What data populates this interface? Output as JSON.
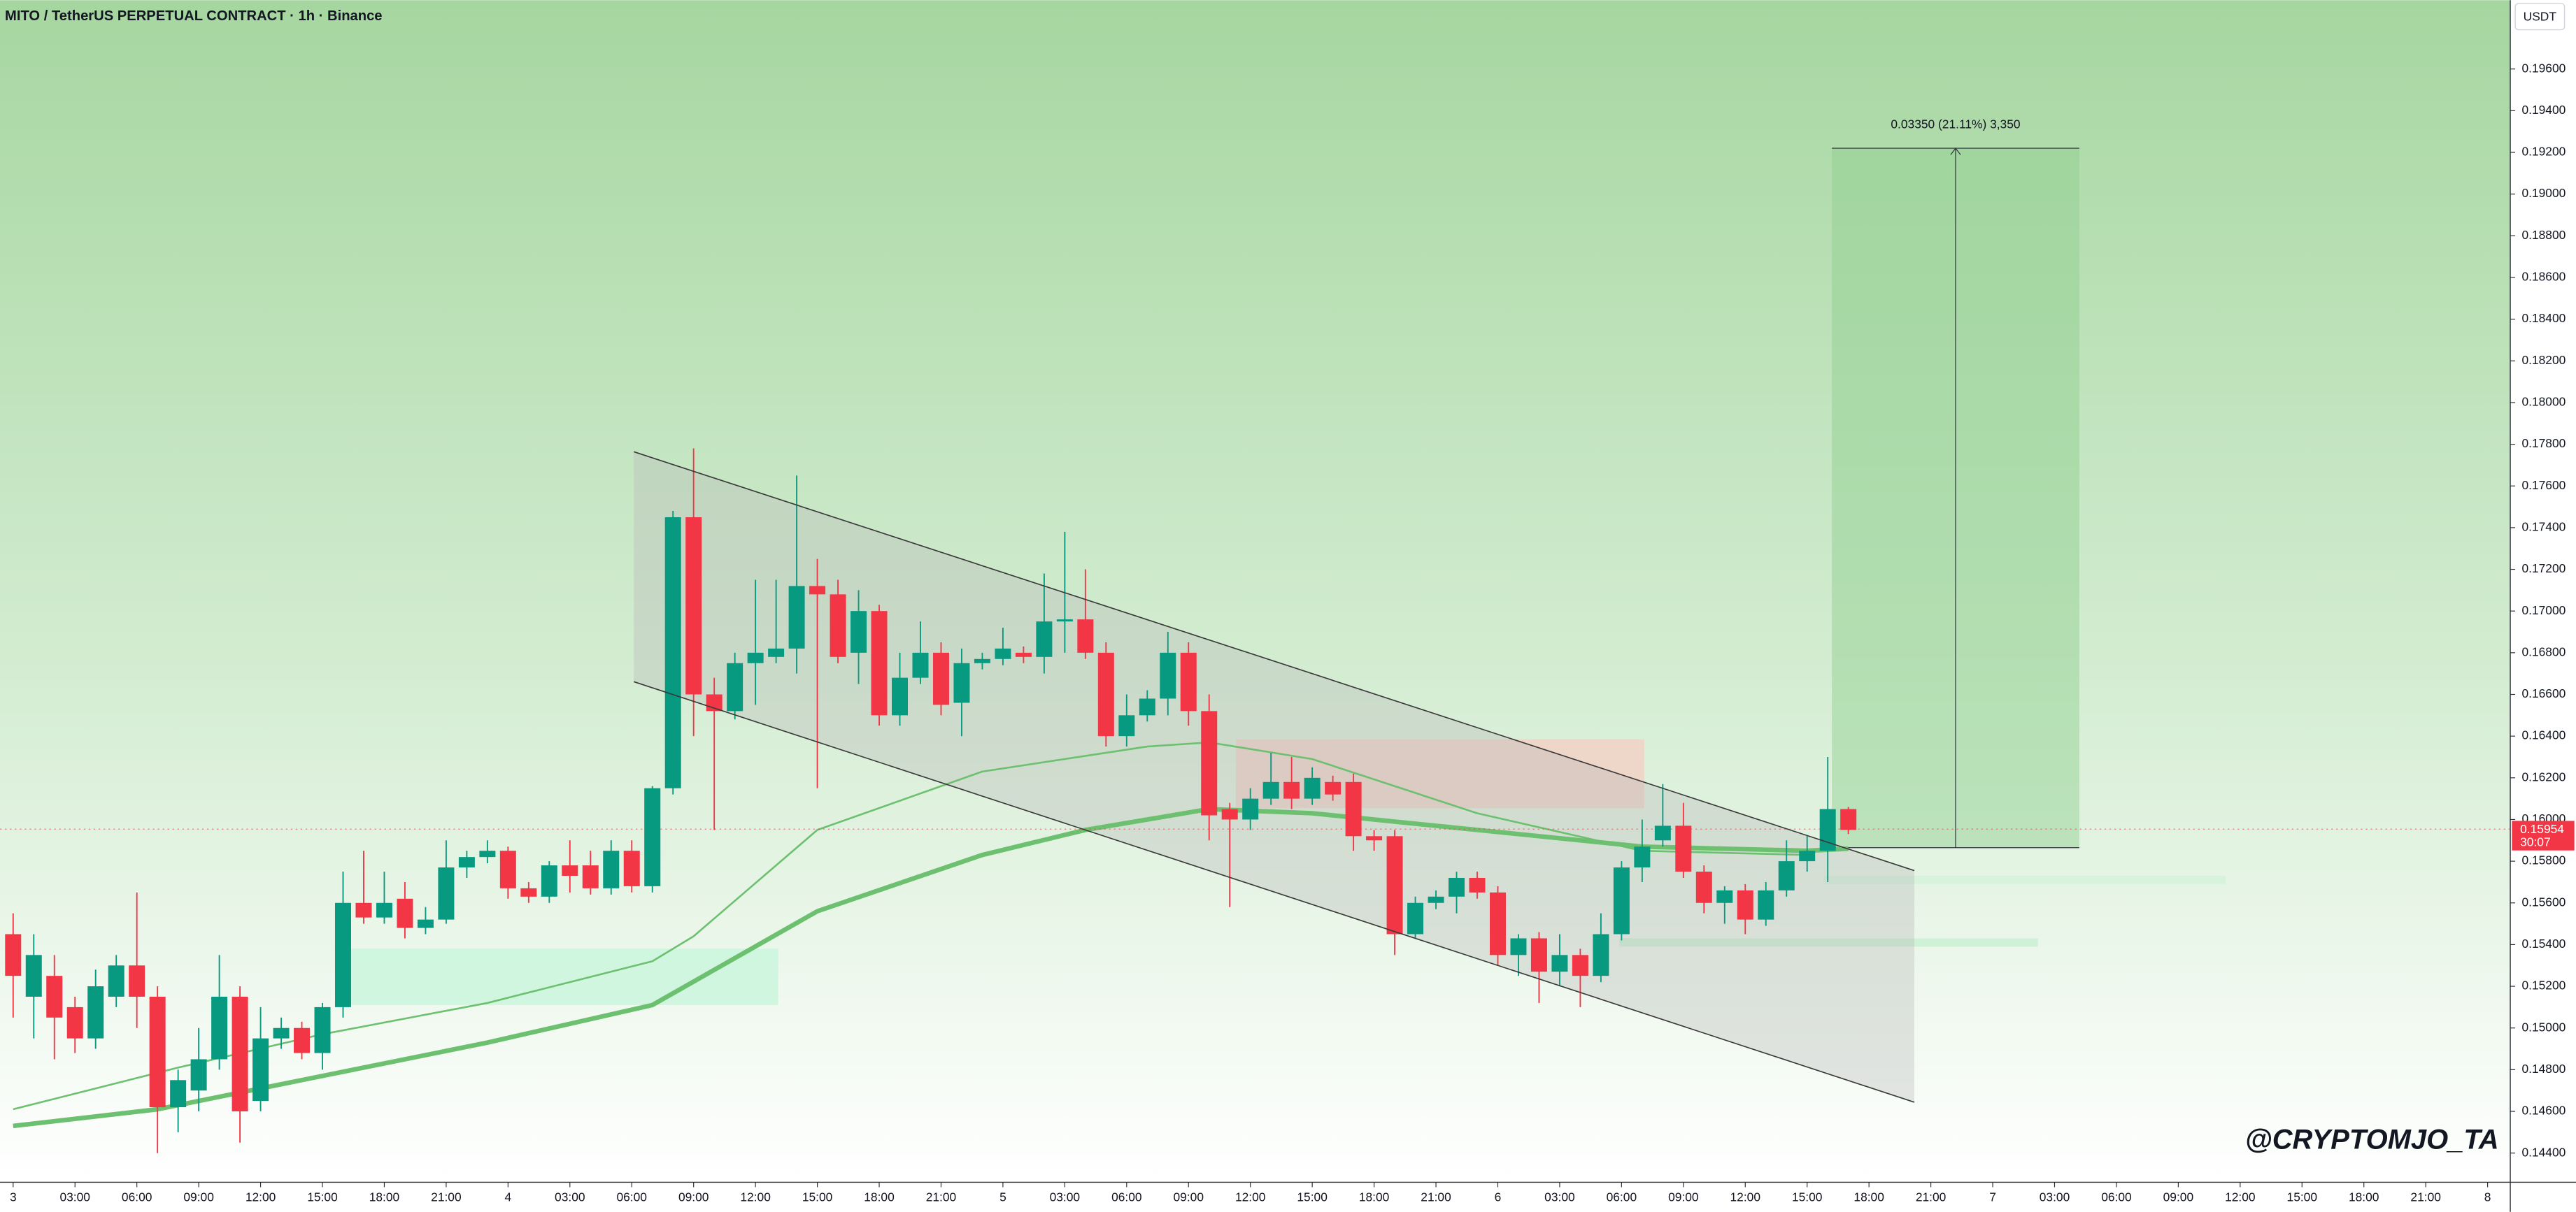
{
  "chart_data": {
    "type": "candlestick",
    "title": "MITO / TetherUS PERPETUAL CONTRACT · 1h · Binance",
    "currency_button": "USDT",
    "watermark": "@CRYPTOMJO_TA",
    "up_color": "#089981",
    "down_color": "#f23645",
    "x": [
      0,
      1,
      2,
      3,
      4,
      5,
      6,
      7,
      8,
      9,
      10,
      11,
      12,
      13,
      14,
      15,
      16,
      17,
      18,
      19,
      20,
      21,
      22,
      23,
      24,
      25,
      26,
      27,
      28,
      29,
      30,
      31,
      32,
      33,
      34,
      35,
      36,
      37,
      38,
      39,
      40,
      41,
      42,
      43,
      44,
      45,
      46,
      47,
      48,
      49,
      50,
      51,
      52,
      53,
      54,
      55,
      56,
      57,
      58,
      59,
      60,
      61,
      62,
      63,
      64,
      65,
      66,
      67,
      68,
      69,
      70,
      71,
      72,
      73,
      74,
      75,
      76,
      77,
      78,
      79,
      80,
      81,
      82,
      83,
      84,
      85,
      86,
      87,
      88,
      89
    ],
    "open": [
      0.1545,
      0.1515,
      0.1525,
      0.151,
      0.1495,
      0.1515,
      0.153,
      0.1515,
      0.1462,
      0.147,
      0.1485,
      0.1515,
      0.1465,
      0.1495,
      0.15,
      0.1488,
      0.151,
      0.156,
      0.1553,
      0.1562,
      0.1548,
      0.1552,
      0.1577,
      0.1582,
      0.1585,
      0.1567,
      0.1563,
      0.1578,
      0.1578,
      0.1567,
      0.1585,
      0.1568,
      0.1615,
      0.1745,
      0.166,
      0.1652,
      0.1675,
      0.1678,
      0.1682,
      0.1712,
      0.1708,
      0.168,
      0.17,
      0.165,
      0.1668,
      0.168,
      0.1656,
      0.1675,
      0.1677,
      0.168,
      0.1678,
      0.1695,
      0.1696,
      0.168,
      0.164,
      0.165,
      0.1658,
      0.168,
      0.1652,
      0.1605,
      0.16,
      0.161,
      0.1618,
      0.161,
      0.1618,
      0.1618,
      0.1592,
      0.1592,
      0.1545,
      0.156,
      0.1563,
      0.1572,
      0.1565,
      0.1535,
      0.1543,
      0.1527,
      0.1535,
      0.1525,
      0.1545,
      0.1577,
      0.159,
      0.1597,
      0.1575,
      0.156,
      0.1566,
      0.1552,
      0.1566,
      0.158,
      0.1585,
      0.1605
    ],
    "high": [
      0.1555,
      0.1545,
      0.1535,
      0.1515,
      0.1528,
      0.1535,
      0.1565,
      0.152,
      0.148,
      0.15,
      0.1535,
      0.152,
      0.151,
      0.1505,
      0.1503,
      0.1512,
      0.1575,
      0.1585,
      0.1575,
      0.157,
      0.1558,
      0.159,
      0.1585,
      0.159,
      0.1587,
      0.157,
      0.158,
      0.159,
      0.1585,
      0.159,
      0.159,
      0.1616,
      0.1748,
      0.1778,
      0.1668,
      0.168,
      0.1715,
      0.1715,
      0.1765,
      0.1725,
      0.1715,
      0.171,
      0.1703,
      0.168,
      0.1695,
      0.1685,
      0.1682,
      0.168,
      0.1692,
      0.1683,
      0.1718,
      0.1738,
      0.172,
      0.1685,
      0.166,
      0.1662,
      0.169,
      0.1685,
      0.166,
      0.1608,
      0.1615,
      0.1632,
      0.163,
      0.1625,
      0.1621,
      0.1622,
      0.1595,
      0.1595,
      0.1563,
      0.1566,
      0.1575,
      0.1575,
      0.1568,
      0.1545,
      0.1546,
      0.1545,
      0.1538,
      0.1555,
      0.158,
      0.16,
      0.1617,
      0.1608,
      0.1578,
      0.1568,
      0.1569,
      0.157,
      0.159,
      0.1592,
      0.163,
      0.1606
    ],
    "low": [
      0.1505,
      0.1495,
      0.1485,
      0.1488,
      0.149,
      0.151,
      0.15,
      0.144,
      0.145,
      0.146,
      0.148,
      0.1445,
      0.146,
      0.149,
      0.1485,
      0.148,
      0.1505,
      0.155,
      0.155,
      0.1543,
      0.1545,
      0.155,
      0.1572,
      0.1579,
      0.1562,
      0.156,
      0.156,
      0.1565,
      0.1564,
      0.1564,
      0.1565,
      0.1565,
      0.1612,
      0.164,
      0.1595,
      0.1648,
      0.1655,
      0.1675,
      0.167,
      0.1615,
      0.1675,
      0.1665,
      0.1645,
      0.1645,
      0.1665,
      0.165,
      0.164,
      0.1672,
      0.1674,
      0.1675,
      0.167,
      0.168,
      0.1677,
      0.1635,
      0.1635,
      0.1647,
      0.165,
      0.1645,
      0.159,
      0.1558,
      0.1595,
      0.1607,
      0.1605,
      0.1607,
      0.1609,
      0.1585,
      0.1585,
      0.1535,
      0.1543,
      0.1557,
      0.1555,
      0.1562,
      0.153,
      0.1525,
      0.1512,
      0.152,
      0.151,
      0.1522,
      0.1542,
      0.157,
      0.1587,
      0.1572,
      0.1555,
      0.155,
      0.1545,
      0.1549,
      0.1563,
      0.1575,
      0.157,
      0.1593
    ],
    "close": [
      0.1525,
      0.1535,
      0.1505,
      0.1495,
      0.152,
      0.153,
      0.1515,
      0.1462,
      0.1475,
      0.1485,
      0.1515,
      0.146,
      0.1495,
      0.15,
      0.1488,
      0.151,
      0.156,
      0.1553,
      0.156,
      0.1548,
      0.1552,
      0.1577,
      0.1582,
      0.1585,
      0.1567,
      0.1563,
      0.1578,
      0.1573,
      0.1567,
      0.1585,
      0.1568,
      0.1615,
      0.1745,
      0.166,
      0.1652,
      0.1675,
      0.168,
      0.1682,
      0.1712,
      0.1708,
      0.1678,
      0.17,
      0.165,
      0.1668,
      0.168,
      0.1655,
      0.1675,
      0.1677,
      0.1682,
      0.1678,
      0.1695,
      0.1696,
      0.168,
      0.164,
      0.165,
      0.1658,
      0.168,
      0.1652,
      0.1602,
      0.16,
      0.161,
      0.1618,
      0.161,
      0.162,
      0.1612,
      0.1592,
      0.159,
      0.1545,
      0.156,
      0.1563,
      0.1572,
      0.1565,
      0.1535,
      0.1543,
      0.1527,
      0.1535,
      0.1525,
      0.1545,
      0.1577,
      0.1587,
      0.1597,
      0.1575,
      0.156,
      0.1566,
      0.1552,
      0.1566,
      0.158,
      0.1585,
      0.1605,
      0.1595
    ],
    "xlim": [
      -0.637,
      121.1
    ],
    "ylim": [
      0.1426,
      0.1993
    ],
    "xticks": [
      {
        "value": 0,
        "label": "3"
      },
      {
        "value": 3,
        "label": "03:00"
      },
      {
        "value": 6,
        "label": "06:00"
      },
      {
        "value": 9,
        "label": "09:00"
      },
      {
        "value": 12,
        "label": "12:00"
      },
      {
        "value": 15,
        "label": "15:00"
      },
      {
        "value": 18,
        "label": "18:00"
      },
      {
        "value": 21,
        "label": "21:00"
      },
      {
        "value": 24,
        "label": "4"
      },
      {
        "value": 27,
        "label": "03:00"
      },
      {
        "value": 30,
        "label": "06:00"
      },
      {
        "value": 33,
        "label": "09:00"
      },
      {
        "value": 36,
        "label": "12:00"
      },
      {
        "value": 39,
        "label": "15:00"
      },
      {
        "value": 42,
        "label": "18:00"
      },
      {
        "value": 45,
        "label": "21:00"
      },
      {
        "value": 48,
        "label": "5"
      },
      {
        "value": 51,
        "label": "03:00"
      },
      {
        "value": 54,
        "label": "06:00"
      },
      {
        "value": 57,
        "label": "09:00"
      },
      {
        "value": 60,
        "label": "12:00"
      },
      {
        "value": 63,
        "label": "15:00"
      },
      {
        "value": 66,
        "label": "18:00"
      },
      {
        "value": 69,
        "label": "21:00"
      },
      {
        "value": 72,
        "label": "6"
      },
      {
        "value": 75,
        "label": "03:00"
      },
      {
        "value": 78,
        "label": "06:00"
      },
      {
        "value": 81,
        "label": "09:00"
      },
      {
        "value": 84,
        "label": "12:00"
      },
      {
        "value": 87,
        "label": "15:00"
      },
      {
        "value": 90,
        "label": "18:00"
      },
      {
        "value": 93,
        "label": "21:00"
      },
      {
        "value": 96,
        "label": "7"
      },
      {
        "value": 99,
        "label": "03:00"
      },
      {
        "value": 102,
        "label": "06:00"
      },
      {
        "value": 105,
        "label": "09:00"
      },
      {
        "value": 108,
        "label": "12:00"
      },
      {
        "value": 111,
        "label": "15:00"
      },
      {
        "value": 114,
        "label": "18:00"
      },
      {
        "value": 117,
        "label": "21:00"
      },
      {
        "value": 120,
        "label": "8"
      }
    ],
    "yticks": [
      {
        "value": 0.144,
        "label": "0.14400"
      },
      {
        "value": 0.146,
        "label": "0.14600"
      },
      {
        "value": 0.148,
        "label": "0.14800"
      },
      {
        "value": 0.15,
        "label": "0.15000"
      },
      {
        "value": 0.152,
        "label": "0.15200"
      },
      {
        "value": 0.154,
        "label": "0.15400"
      },
      {
        "value": 0.156,
        "label": "0.15600"
      },
      {
        "value": 0.158,
        "label": "0.15800"
      },
      {
        "value": 0.16,
        "label": "0.16000"
      },
      {
        "value": 0.162,
        "label": "0.16200"
      },
      {
        "value": 0.164,
        "label": "0.16400"
      },
      {
        "value": 0.166,
        "label": "0.16600"
      },
      {
        "value": 0.168,
        "label": "0.16800"
      },
      {
        "value": 0.17,
        "label": "0.17000"
      },
      {
        "value": 0.172,
        "label": "0.17200"
      },
      {
        "value": 0.174,
        "label": "0.17400"
      },
      {
        "value": 0.176,
        "label": "0.17600"
      },
      {
        "value": 0.178,
        "label": "0.17800"
      },
      {
        "value": 0.18,
        "label": "0.18000"
      },
      {
        "value": 0.182,
        "label": "0.18200"
      },
      {
        "value": 0.184,
        "label": "0.18400"
      },
      {
        "value": 0.186,
        "label": "0.18600"
      },
      {
        "value": 0.188,
        "label": "0.18800"
      },
      {
        "value": 0.19,
        "label": "0.19000"
      },
      {
        "value": 0.192,
        "label": "0.19200"
      },
      {
        "value": 0.194,
        "label": "0.19400"
      },
      {
        "value": 0.196,
        "label": "0.19600"
      }
    ],
    "grid": false,
    "moving_averages": [
      {
        "color": "#6cc070",
        "x": [
          0,
          8,
          15,
          23,
          31,
          33,
          39,
          47,
          55,
          58,
          63,
          71,
          79,
          87
        ],
        "values": [
          0.1461,
          0.1481,
          0.1497,
          0.1512,
          0.1532,
          0.1544,
          0.1595,
          0.1623,
          0.1635,
          0.1637,
          0.1629,
          0.1603,
          0.1585,
          0.1583
        ]
      },
      {
        "color": "#6cc070",
        "x": [
          0,
          7,
          15,
          23,
          31,
          39,
          47,
          52,
          58,
          63,
          71,
          79,
          87,
          89
        ],
        "values": [
          0.1453,
          0.1461,
          0.1477,
          0.1493,
          0.1511,
          0.1556,
          0.1583,
          0.1595,
          0.1605,
          0.1603,
          0.1595,
          0.1587,
          0.1585,
          0.1586
        ]
      }
    ],
    "trendlines": [
      {
        "x": [
          30.1,
          92.2
        ],
        "values": [
          0.17764,
          0.15755
        ]
      },
      {
        "x": [
          30.1,
          92.2
        ],
        "values": [
          0.16661,
          0.14644
        ]
      }
    ],
    "channel_color": "#b8b8b8",
    "zones": [
      {
        "x": [
          16.1,
          37.1
        ],
        "values": [
          0.1538,
          0.1511
        ],
        "color": "#c8f5dc"
      },
      {
        "x": [
          59.3,
          79.1
        ],
        "values": [
          0.16385,
          0.16054
        ],
        "color": "#f2cfc4"
      },
      {
        "x": [
          77.9,
          98.2
        ],
        "values": [
          0.1543,
          0.1539
        ],
        "color": "#c8f0d2"
      },
      {
        "x": [
          87.8,
          107.3
        ],
        "values": [
          0.1573,
          0.1569
        ],
        "color": "#d4f2da"
      }
    ],
    "measure": {
      "x": [
        88.2,
        100.2
      ],
      "values": [
        0.15865,
        0.1922
      ],
      "label": "0.03350 (21.11%) 3,350",
      "color": "#8fcf8f"
    },
    "last_price": {
      "value": 0.15954,
      "label": "0.15954",
      "countdown": "30:07",
      "color": "#f23645"
    }
  }
}
